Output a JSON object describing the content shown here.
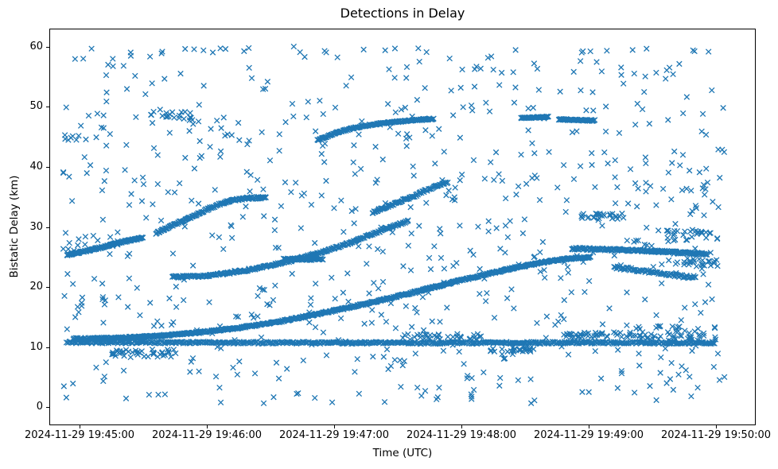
{
  "chart_data": {
    "type": "scatter",
    "title": "Detections in Delay",
    "xlabel": "Time (UTC)",
    "ylabel": "Bistatic Delay (km)",
    "marker": {
      "shape": "x",
      "color": "#1f77b4",
      "size": 6.5,
      "line_width": 1.3
    },
    "x_axis": {
      "reference": "seconds relative to 2024-11-29 19:45:00 UTC",
      "domain_seconds": [
        -14.25,
        318.75
      ],
      "ticks": [
        {
          "t": 0,
          "label": "2024-11-29 19:45:00"
        },
        {
          "t": 60,
          "label": "2024-11-29 19:46:00"
        },
        {
          "t": 120,
          "label": "2024-11-29 19:47:00"
        },
        {
          "t": 180,
          "label": "2024-11-29 19:48:00"
        },
        {
          "t": 240,
          "label": "2024-11-29 19:49:00"
        },
        {
          "t": 300,
          "label": "2024-11-29 19:50:00"
        }
      ]
    },
    "y_axis": {
      "domain": [
        -3,
        63
      ],
      "ticks": [
        0,
        10,
        20,
        30,
        40,
        50,
        60
      ]
    },
    "grid": false,
    "legend": false,
    "tracks": [
      {
        "name": "track-a-left-rise",
        "waypoints": [
          [
            -6,
            25.3
          ],
          [
            8,
            26.4
          ],
          [
            20,
            27.5
          ],
          [
            30,
            28.2
          ]
        ],
        "step": 0.3,
        "jitter": 0.13
      },
      {
        "name": "track-b-long-sigmoid",
        "waypoints": [
          [
            -3,
            11.4
          ],
          [
            15,
            11.5
          ],
          [
            35,
            11.8
          ],
          [
            55,
            12.4
          ],
          [
            75,
            13.2
          ],
          [
            95,
            14.3
          ],
          [
            115,
            15.7
          ],
          [
            135,
            17.2
          ],
          [
            155,
            18.9
          ],
          [
            175,
            20.7
          ],
          [
            190,
            22.0
          ],
          [
            205,
            23.2
          ],
          [
            218,
            24.1
          ],
          [
            230,
            24.7
          ],
          [
            241,
            25.0
          ]
        ],
        "step": 0.32,
        "jitter": 0.14
      },
      {
        "name": "track-c-mid-rise",
        "waypoints": [
          [
            44,
            21.7
          ],
          [
            58,
            21.8
          ],
          [
            70,
            22.3
          ],
          [
            85,
            23.2
          ],
          [
            100,
            24.4
          ],
          [
            115,
            25.9
          ],
          [
            128,
            27.4
          ],
          [
            140,
            29.1
          ],
          [
            150,
            30.4
          ],
          [
            155,
            31.0
          ]
        ],
        "step": 0.38,
        "jitter": 0.16
      },
      {
        "name": "track-d-left-steep",
        "waypoints": [
          [
            36,
            29.0
          ],
          [
            50,
            31.2
          ],
          [
            62,
            33.2
          ],
          [
            70,
            34.3
          ],
          [
            80,
            34.8
          ],
          [
            88,
            34.9
          ]
        ],
        "step": 0.36,
        "jitter": 0.18
      },
      {
        "name": "track-e-short-rise",
        "waypoints": [
          [
            138,
            32.4
          ],
          [
            148,
            33.8
          ],
          [
            158,
            35.2
          ],
          [
            168,
            36.8
          ],
          [
            174,
            37.5
          ]
        ],
        "step": 0.4,
        "jitter": 0.18
      },
      {
        "name": "track-f-47-48",
        "waypoints": [
          [
            112,
            44.4
          ],
          [
            122,
            45.8
          ],
          [
            132,
            46.7
          ],
          [
            142,
            47.2
          ],
          [
            155,
            47.7
          ],
          [
            167,
            48.0
          ]
        ],
        "step": 0.35,
        "jitter": 0.12
      },
      {
        "name": "track-g1-flat48",
        "waypoints": [
          [
            208,
            48.15
          ],
          [
            221,
            48.3
          ]
        ],
        "step": 0.3,
        "jitter": 0.1
      },
      {
        "name": "track-g2-flat477",
        "waypoints": [
          [
            226,
            47.9
          ],
          [
            243,
            47.7
          ]
        ],
        "step": 0.3,
        "jitter": 0.1
      },
      {
        "name": "track-h-right-26",
        "waypoints": [
          [
            232,
            26.4
          ],
          [
            255,
            26.2
          ],
          [
            275,
            25.9
          ],
          [
            296,
            25.5
          ]
        ],
        "step": 0.34,
        "jitter": 0.18
      },
      {
        "name": "track-i-horizontal-band",
        "waypoints": [
          [
            -6,
            10.8
          ],
          [
            80,
            10.75
          ],
          [
            160,
            10.7
          ],
          [
            240,
            10.75
          ],
          [
            300,
            10.7
          ]
        ],
        "step": 0.5,
        "jitter": 0.17
      },
      {
        "name": "track-j-flat-246",
        "waypoints": [
          [
            96,
            24.7
          ],
          [
            115,
            24.55
          ]
        ],
        "step": 0.4,
        "jitter": 0.14
      },
      {
        "name": "track-l-right-desc",
        "waypoints": [
          [
            252,
            23.3
          ],
          [
            268,
            22.6
          ],
          [
            282,
            21.9
          ],
          [
            291,
            21.6
          ]
        ],
        "step": 0.5,
        "jitter": 0.25
      }
    ],
    "clusters": [
      {
        "name": "blob-low-left",
        "t": [
          15,
          45
        ],
        "y": [
          8.4,
          9.6
        ],
        "count": 35
      },
      {
        "name": "band-bump-mid",
        "t": [
          152,
          190
        ],
        "y": [
          11.2,
          12.2
        ],
        "count": 35
      },
      {
        "name": "band-dip-right",
        "t": [
          192,
          215
        ],
        "y": [
          9.2,
          9.9
        ],
        "count": 25
      },
      {
        "name": "band-bump-right",
        "t": [
          228,
          265
        ],
        "y": [
          11.6,
          12.5
        ],
        "count": 45
      },
      {
        "name": "right-band-spread",
        "t": [
          262,
          301
        ],
        "y": [
          10.9,
          13.6
        ],
        "count": 55
      },
      {
        "name": "cluster-32-right",
        "t": [
          235,
          256
        ],
        "y": [
          31.3,
          32.3
        ],
        "count": 25
      },
      {
        "name": "cluster-28-right",
        "t": [
          276,
          301
        ],
        "y": [
          27.6,
          29.4
        ],
        "count": 30
      },
      {
        "name": "cluster-24-right",
        "t": [
          283,
          301
        ],
        "y": [
          23.4,
          24.8
        ],
        "count": 25
      },
      {
        "name": "cluster-48-left",
        "t": [
          33,
          55
        ],
        "y": [
          47.3,
          49.3
        ],
        "count": 20
      },
      {
        "name": "cluster-45-left-edge",
        "t": [
          -8,
          4
        ],
        "y": [
          44.4,
          45.3
        ],
        "count": 8
      },
      {
        "name": "top-59-sprinkle",
        "t": [
          -6,
          300
        ],
        "y": [
          58.8,
          59.8
        ],
        "count": 26
      },
      {
        "name": "vertical-strip-194510",
        "t": [
          7,
          13
        ],
        "y": [
          5,
          59
        ],
        "count": 15
      }
    ],
    "noise": {
      "seed": 20241129,
      "count": 700,
      "t_range": [
        -8,
        304
      ],
      "y_range": [
        0.6,
        60.3
      ]
    }
  }
}
